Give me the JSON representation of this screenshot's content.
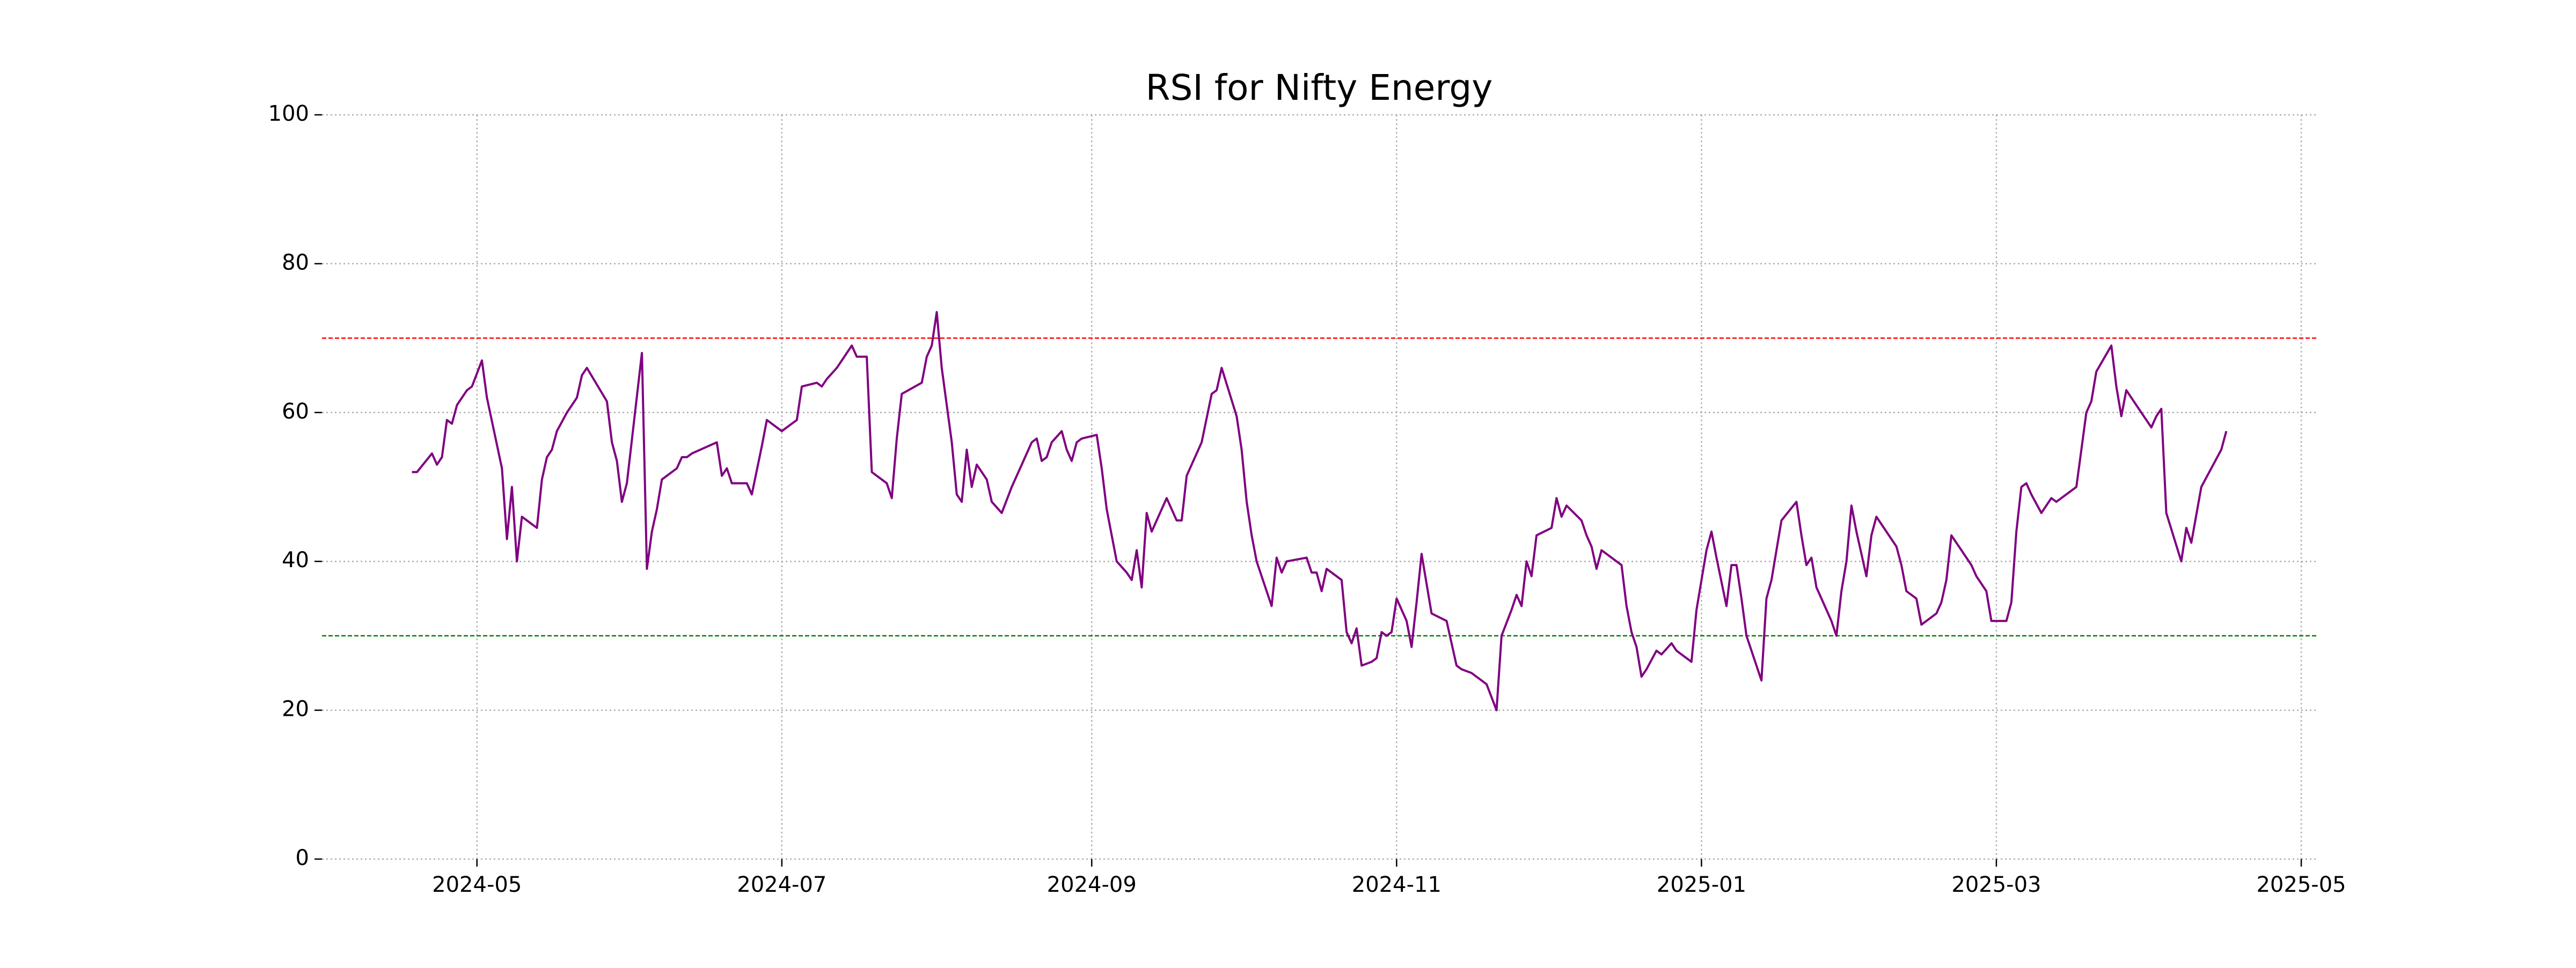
{
  "chart_data": {
    "type": "line",
    "title": "RSI for Nifty Energy",
    "color": "purple",
    "grid": true,
    "xlim": [
      "2024-03-31",
      "2025-05-04"
    ],
    "xticks": [
      {
        "value": "2024-05-01",
        "label": "2024-05"
      },
      {
        "value": "2024-07-01",
        "label": "2024-07"
      },
      {
        "value": "2024-09-01",
        "label": "2024-09"
      },
      {
        "value": "2024-11-01",
        "label": "2024-11"
      },
      {
        "value": "2025-01-01",
        "label": "2025-01"
      },
      {
        "value": "2025-03-01",
        "label": "2025-03"
      },
      {
        "value": "2025-05-01",
        "label": "2025-05"
      }
    ],
    "ylim": [
      0,
      100
    ],
    "yticks": [
      0,
      20,
      40,
      60,
      80,
      100
    ],
    "hlines": [
      {
        "value": 70,
        "color": "red"
      },
      {
        "value": 30,
        "color": "green"
      }
    ],
    "x": [
      "2024-04-18",
      "2024-04-19",
      "2024-04-22",
      "2024-04-23",
      "2024-04-24",
      "2024-04-25",
      "2024-04-26",
      "2024-04-27",
      "2024-04-29",
      "2024-04-30",
      "2024-05-02",
      "2024-05-03",
      "2024-05-06",
      "2024-05-07",
      "2024-05-08",
      "2024-05-09",
      "2024-05-10",
      "2024-05-13",
      "2024-05-14",
      "2024-05-15",
      "2024-05-16",
      "2024-05-17",
      "2024-05-19",
      "2024-05-21",
      "2024-05-22",
      "2024-05-23",
      "2024-05-27",
      "2024-05-28",
      "2024-05-29",
      "2024-05-30",
      "2024-05-31",
      "2024-06-03",
      "2024-06-04",
      "2024-06-05",
      "2024-06-06",
      "2024-06-07",
      "2024-06-10",
      "2024-06-11",
      "2024-06-12",
      "2024-06-13",
      "2024-06-18",
      "2024-06-19",
      "2024-06-20",
      "2024-06-21",
      "2024-06-24",
      "2024-06-25",
      "2024-06-27",
      "2024-06-28",
      "2024-07-01",
      "2024-07-02",
      "2024-07-04",
      "2024-07-05",
      "2024-07-08",
      "2024-07-09",
      "2024-07-10",
      "2024-07-12",
      "2024-07-15",
      "2024-07-16",
      "2024-07-18",
      "2024-07-19",
      "2024-07-22",
      "2024-07-23",
      "2024-07-24",
      "2024-07-25",
      "2024-07-29",
      "2024-07-30",
      "2024-07-31",
      "2024-08-01",
      "2024-08-02",
      "2024-08-04",
      "2024-08-05",
      "2024-08-06",
      "2024-08-07",
      "2024-08-08",
      "2024-08-09",
      "2024-08-11",
      "2024-08-12",
      "2024-08-14",
      "2024-08-16",
      "2024-08-18",
      "2024-08-20",
      "2024-08-21",
      "2024-08-22",
      "2024-08-23",
      "2024-08-24",
      "2024-08-26",
      "2024-08-27",
      "2024-08-28",
      "2024-08-29",
      "2024-08-30",
      "2024-09-02",
      "2024-09-03",
      "2024-09-04",
      "2024-09-06",
      "2024-09-08",
      "2024-09-09",
      "2024-09-10",
      "2024-09-11",
      "2024-09-12",
      "2024-09-13",
      "2024-09-14",
      "2024-09-16",
      "2024-09-18",
      "2024-09-19",
      "2024-09-20",
      "2024-09-23",
      "2024-09-25",
      "2024-09-26",
      "2024-09-27",
      "2024-09-30",
      "2024-10-01",
      "2024-10-02",
      "2024-10-03",
      "2024-10-04",
      "2024-10-06",
      "2024-10-07",
      "2024-10-08",
      "2024-10-09",
      "2024-10-10",
      "2024-10-14",
      "2024-10-15",
      "2024-10-16",
      "2024-10-17",
      "2024-10-18",
      "2024-10-21",
      "2024-10-22",
      "2024-10-23",
      "2024-10-24",
      "2024-10-25",
      "2024-10-27",
      "2024-10-28",
      "2024-10-29",
      "2024-10-30",
      "2024-10-31",
      "2024-11-01",
      "2024-11-03",
      "2024-11-04",
      "2024-11-05",
      "2024-11-06",
      "2024-11-08",
      "2024-11-11",
      "2024-11-13",
      "2024-11-14",
      "2024-11-16",
      "2024-11-19",
      "2024-11-21",
      "2024-11-22",
      "2024-11-24",
      "2024-11-25",
      "2024-11-26",
      "2024-11-27",
      "2024-11-28",
      "2024-11-29",
      "2024-12-02",
      "2024-12-03",
      "2024-12-04",
      "2024-12-05",
      "2024-12-08",
      "2024-12-09",
      "2024-12-10",
      "2024-12-11",
      "2024-12-12",
      "2024-12-16",
      "2024-12-17",
      "2024-12-18",
      "2024-12-19",
      "2024-12-20",
      "2024-12-21",
      "2024-12-23",
      "2024-12-24",
      "2024-12-26",
      "2024-12-27",
      "2024-12-28",
      "2024-12-30",
      "2024-12-31",
      "2025-01-02",
      "2025-01-03",
      "2025-01-04",
      "2025-01-06",
      "2025-01-07",
      "2025-01-08",
      "2025-01-09",
      "2025-01-10",
      "2025-01-13",
      "2025-01-14",
      "2025-01-15",
      "2025-01-17",
      "2025-01-20",
      "2025-01-21",
      "2025-01-22",
      "2025-01-23",
      "2025-01-24",
      "2025-01-27",
      "2025-01-28",
      "2025-01-29",
      "2025-01-30",
      "2025-01-31",
      "2025-02-01",
      "2025-02-02",
      "2025-02-03",
      "2025-02-04",
      "2025-02-05",
      "2025-02-09",
      "2025-02-10",
      "2025-02-11",
      "2025-02-13",
      "2025-02-14",
      "2025-02-17",
      "2025-02-18",
      "2025-02-19",
      "2025-02-20",
      "2025-02-21",
      "2025-02-22",
      "2025-02-24",
      "2025-02-25",
      "2025-02-27",
      "2025-02-28",
      "2025-03-03",
      "2025-03-04",
      "2025-03-05",
      "2025-03-06",
      "2025-03-07",
      "2025-03-08",
      "2025-03-10",
      "2025-03-12",
      "2025-03-13",
      "2025-03-17",
      "2025-03-19",
      "2025-03-20",
      "2025-03-21",
      "2025-03-24",
      "2025-03-25",
      "2025-03-26",
      "2025-03-27",
      "2025-03-30",
      "2025-04-01",
      "2025-04-02",
      "2025-04-03",
      "2025-04-04",
      "2025-04-07",
      "2025-04-08",
      "2025-04-09",
      "2025-04-11",
      "2025-04-13",
      "2025-04-15",
      "2025-04-16"
    ],
    "values": [
      52,
      52,
      54.5,
      53,
      54,
      59,
      58.5,
      61,
      63,
      63.5,
      67,
      62,
      52.5,
      43,
      50,
      40,
      46,
      44.5,
      51,
      54,
      55,
      57.5,
      60,
      62,
      65,
      66,
      61.5,
      56,
      53.5,
      48,
      50.5,
      68,
      39,
      44,
      47,
      51,
      52.5,
      54,
      54,
      54.5,
      56,
      51.5,
      52.5,
      50.5,
      50.5,
      49,
      55.5,
      59,
      57.5,
      58,
      59,
      63.5,
      64,
      63.5,
      64.5,
      66,
      69,
      67.5,
      67.5,
      52,
      50.5,
      48.5,
      56.5,
      62.5,
      64,
      67.5,
      69,
      73.5,
      66,
      56,
      49,
      48,
      55,
      50,
      53,
      51,
      48,
      46.5,
      50,
      53,
      56,
      56.5,
      53.5,
      54,
      56,
      57.5,
      55,
      53.5,
      56,
      56.5,
      57,
      52.5,
      47,
      40,
      38.5,
      37.5,
      41.5,
      36.5,
      46.5,
      44,
      45.5,
      48.5,
      45.5,
      45.5,
      51.5,
      56,
      62.5,
      63,
      66,
      59.5,
      55,
      48,
      43.5,
      40,
      36,
      34,
      40.5,
      38.5,
      40,
      40.5,
      38.5,
      38.5,
      36,
      39,
      37.5,
      30.5,
      29,
      31,
      26,
      26.5,
      27,
      30.5,
      30,
      30.5,
      35,
      32,
      28.5,
      34.5,
      41,
      33,
      32,
      26,
      25.5,
      25,
      23.5,
      20,
      30,
      33.5,
      35.5,
      34,
      40,
      38,
      43.5,
      44.5,
      48.5,
      46,
      47.5,
      45.5,
      43.5,
      42,
      39,
      41.5,
      39.5,
      34,
      30.5,
      28.5,
      24.5,
      25.5,
      28,
      27.5,
      29,
      28,
      27.5,
      26.5,
      33.5,
      41.5,
      44,
      40.5,
      34,
      39.5,
      39.5,
      35,
      30,
      24,
      35,
      37.5,
      45.5,
      48,
      43.5,
      39.5,
      40.5,
      36.5,
      32,
      30,
      36,
      40,
      47.5,
      44,
      41,
      38,
      43.5,
      46,
      42,
      39.5,
      36,
      35,
      31.5,
      33,
      34.5,
      37.5,
      43.5,
      42.5,
      41.5,
      39.5,
      38,
      36,
      32,
      32,
      34.5,
      44,
      50,
      50.5,
      49,
      46.5,
      48.5,
      48,
      50,
      60,
      61.5,
      65.5,
      69,
      63.5,
      59.5,
      63,
      60,
      58,
      59.5,
      60.5,
      46.5,
      40,
      44.5,
      42.5,
      50,
      52.5,
      55,
      57.5
    ]
  }
}
